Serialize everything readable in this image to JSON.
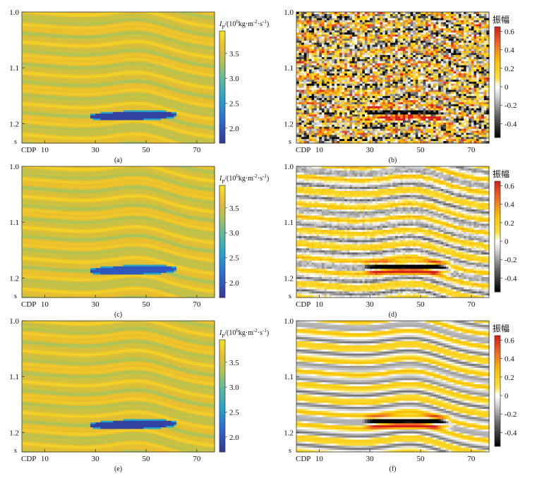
{
  "chart_data": [
    {
      "id": "a",
      "type": "heatmap",
      "kind": "impedance",
      "caption": "(a)",
      "colorbar_title": "I_P/(10^6kg·m^-2·s^-1)",
      "colorbar_ticks": [
        "3.5",
        "3.0",
        "2.5",
        "2.0"
      ],
      "colorbar_tick_values": [
        3.5,
        3.0,
        2.5,
        2.0
      ],
      "colorbar_range": [
        1.7,
        3.95
      ],
      "x_tick_labels": [
        "CDP",
        "10",
        "30",
        "50",
        "70"
      ],
      "x_tick_values": [
        10,
        30,
        50,
        70
      ],
      "xlim": [
        1,
        77
      ],
      "y_tick_labels": [
        "1.0",
        "1.1",
        "1.2"
      ],
      "y_tick_values": [
        1.0,
        1.1,
        1.2
      ],
      "y_unit": "s",
      "ylim": [
        1.0,
        1.235
      ],
      "anomaly": {
        "cdp_start": 28,
        "cdp_end": 62,
        "time_top": 1.18,
        "time_base": 1.192,
        "value": 1.8
      }
    },
    {
      "id": "b",
      "type": "heatmap",
      "kind": "amplitude",
      "caption": "(b)",
      "colorbar_title": "振幅",
      "colorbar_ticks": [
        "0.6",
        "0.4",
        "0.2",
        "0",
        "-0.2",
        "-0.4"
      ],
      "colorbar_tick_values": [
        0.6,
        0.4,
        0.2,
        0,
        -0.2,
        -0.4
      ],
      "colorbar_range": [
        -0.55,
        0.65
      ],
      "x_tick_labels": [
        "CDP",
        "10",
        "30",
        "50",
        "70"
      ],
      "x_tick_values": [
        10,
        30,
        50,
        70
      ],
      "xlim": [
        1,
        77
      ],
      "y_tick_labels": [
        "1.0",
        "1.1",
        "1.2"
      ],
      "y_tick_values": [
        1.0,
        1.1,
        1.2
      ],
      "y_unit": "s",
      "ylim": [
        1.0,
        1.235
      ],
      "noise": "high"
    },
    {
      "id": "c",
      "type": "heatmap",
      "kind": "impedance",
      "caption": "(c)",
      "colorbar_title": "I_P/(10^6kg·m^-2·s^-1)",
      "colorbar_ticks": [
        "3.5",
        "3.0",
        "2.5",
        "2.0"
      ],
      "colorbar_tick_values": [
        3.5,
        3.0,
        2.5,
        2.0
      ],
      "colorbar_range": [
        1.7,
        3.95
      ],
      "x_tick_labels": [
        "CDP",
        "10",
        "30",
        "50",
        "70"
      ],
      "x_tick_values": [
        10,
        30,
        50,
        70
      ],
      "xlim": [
        1,
        77
      ],
      "y_tick_labels": [
        "1.0",
        "1.1",
        "1.2"
      ],
      "y_tick_values": [
        1.0,
        1.1,
        1.2
      ],
      "y_unit": "s",
      "ylim": [
        1.0,
        1.235
      ],
      "anomaly": {
        "cdp_start": 28,
        "cdp_end": 62,
        "time_top": 1.18,
        "time_base": 1.192,
        "value": 2.0
      }
    },
    {
      "id": "d",
      "type": "heatmap",
      "kind": "amplitude",
      "caption": "(d)",
      "colorbar_title": "振幅",
      "colorbar_ticks": [
        "0.6",
        "0.4",
        "0.2",
        "0",
        "-0.2",
        "-0.4"
      ],
      "colorbar_tick_values": [
        0.6,
        0.4,
        0.2,
        0,
        -0.2,
        -0.4
      ],
      "colorbar_range": [
        -0.55,
        0.65
      ],
      "x_tick_labels": [
        "CDP",
        "10",
        "30",
        "50",
        "70"
      ],
      "x_tick_values": [
        10,
        30,
        50,
        70
      ],
      "xlim": [
        1,
        77
      ],
      "y_tick_labels": [
        "1.0",
        "1.1",
        "1.2"
      ],
      "y_tick_values": [
        1.0,
        1.1,
        1.2
      ],
      "y_unit": "s",
      "ylim": [
        1.0,
        1.235
      ],
      "noise": "low"
    },
    {
      "id": "e",
      "type": "heatmap",
      "kind": "impedance",
      "caption": "(e)",
      "colorbar_title": "I_P/(10^6kg·m^-2·s^-1)",
      "colorbar_ticks": [
        "3.5",
        "3.0",
        "2.5",
        "2.0"
      ],
      "colorbar_tick_values": [
        3.5,
        3.0,
        2.5,
        2.0
      ],
      "colorbar_range": [
        1.7,
        3.95
      ],
      "x_tick_labels": [
        "CDP",
        "10",
        "30",
        "50",
        "70"
      ],
      "x_tick_values": [
        10,
        30,
        50,
        70
      ],
      "xlim": [
        1,
        77
      ],
      "y_tick_labels": [
        "1.0",
        "1.1",
        "1.2"
      ],
      "y_tick_values": [
        1.0,
        1.1,
        1.2
      ],
      "y_unit": "s",
      "ylim": [
        1.0,
        1.235
      ],
      "anomaly": {
        "cdp_start": 28,
        "cdp_end": 62,
        "time_top": 1.18,
        "time_base": 1.192,
        "value": 1.8
      }
    },
    {
      "id": "f",
      "type": "heatmap",
      "kind": "amplitude",
      "caption": "(f)",
      "colorbar_title": "振幅",
      "colorbar_ticks": [
        "0.6",
        "0.4",
        "0.2",
        "0",
        "-0.2",
        "-0.4"
      ],
      "colorbar_tick_values": [
        0.6,
        0.4,
        0.2,
        0,
        -0.2,
        -0.4
      ],
      "colorbar_range": [
        -0.55,
        0.65
      ],
      "x_tick_labels": [
        "CDP",
        "10",
        "30",
        "50",
        "70"
      ],
      "x_tick_values": [
        10,
        30,
        50,
        70
      ],
      "xlim": [
        1,
        77
      ],
      "y_tick_labels": [
        "1.0",
        "1.1",
        "1.2"
      ],
      "y_tick_values": [
        1.0,
        1.1,
        1.2
      ],
      "y_unit": "s",
      "ylim": [
        1.0,
        1.235
      ],
      "noise": "none"
    }
  ]
}
